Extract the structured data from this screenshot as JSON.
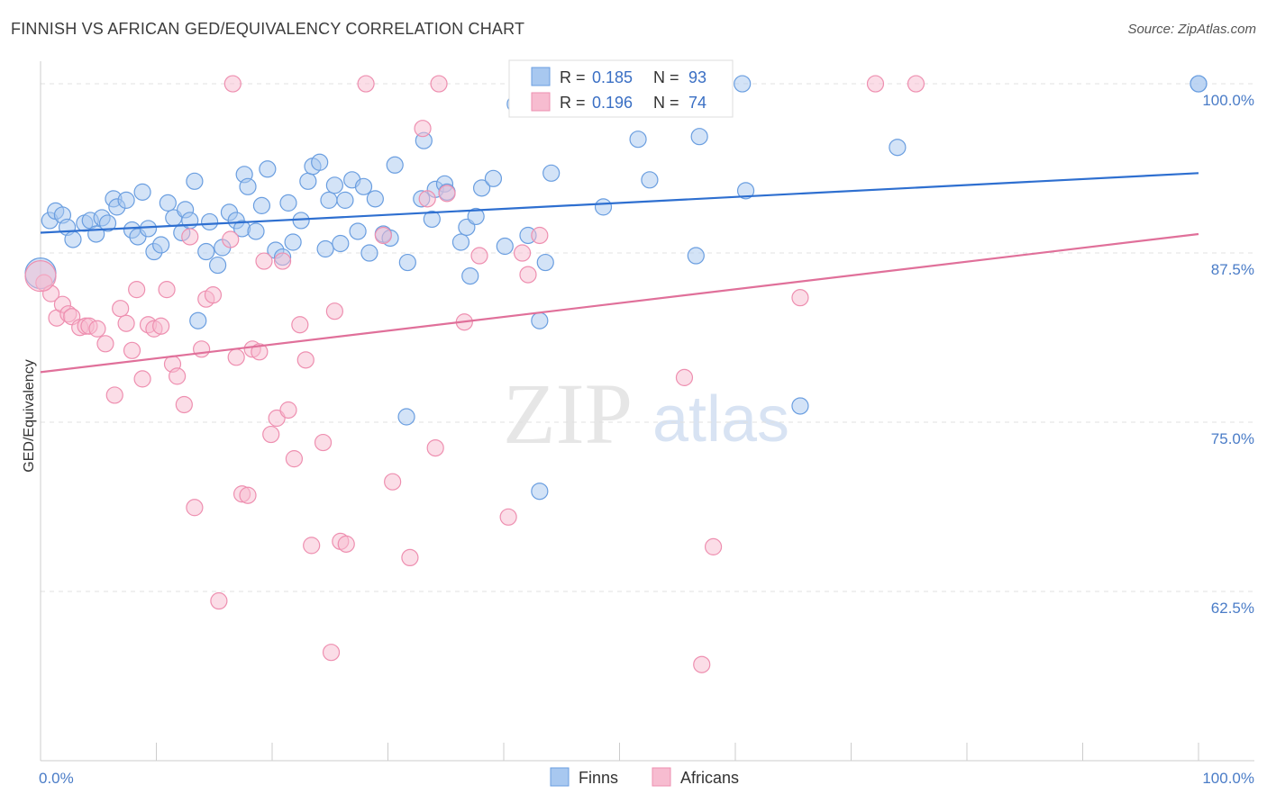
{
  "title": "FINNISH VS AFRICAN GED/EQUIVALENCY CORRELATION CHART",
  "source": "Source: ZipAtlas.com",
  "watermark": {
    "zip": "ZIP",
    "atlas": "atlas"
  },
  "colors": {
    "finns_fill": "#a8c8f0",
    "finns_stroke": "#6a9ee0",
    "finns_line": "#2e6fd0",
    "africans_fill": "#f7bcd0",
    "africans_stroke": "#ee8fb0",
    "africans_line": "#e0709a",
    "tick_label": "#4a7cc7",
    "grid": "#e0e0e0"
  },
  "legend_box": {
    "rows": [
      {
        "r_label": "R =",
        "r_value": "0.185",
        "n_label": "N =",
        "n_value": "93"
      },
      {
        "r_label": "R =",
        "r_value": "0.196",
        "n_label": "N =",
        "n_value": "74"
      }
    ]
  },
  "chart_data": {
    "type": "scatter",
    "title": "FINNISH VS AFRICAN GED/EQUIVALENCY CORRELATION CHART",
    "xlabel": "",
    "ylabel": "GED/Equivalency",
    "xlim": [
      0,
      100
    ],
    "ylim": [
      50,
      101
    ],
    "x_tick_labels": [
      "0.0%",
      "100.0%"
    ],
    "y_ticks": [
      62.5,
      75.0,
      87.5,
      100.0
    ],
    "y_tick_labels": [
      "62.5%",
      "75.0%",
      "87.5%",
      "100.0%"
    ],
    "grid": true,
    "legend_position": "bottom",
    "series": [
      {
        "name": "Finns",
        "r": 0.185,
        "n": 93,
        "trend": {
          "x": [
            0,
            100
          ],
          "y": [
            89.0,
            93.4
          ]
        },
        "points": [
          [
            0.8,
            89.9
          ],
          [
            1.3,
            90.6
          ],
          [
            1.9,
            90.3
          ],
          [
            2.3,
            89.4
          ],
          [
            2.8,
            88.5
          ],
          [
            3.8,
            89.7
          ],
          [
            4.3,
            89.9
          ],
          [
            4.8,
            88.9
          ],
          [
            5.3,
            90.1
          ],
          [
            5.8,
            89.7
          ],
          [
            6.3,
            91.5
          ],
          [
            6.6,
            90.9
          ],
          [
            7.4,
            91.4
          ],
          [
            7.9,
            89.2
          ],
          [
            8.4,
            88.7
          ],
          [
            8.8,
            92.0
          ],
          [
            9.3,
            89.3
          ],
          [
            9.8,
            87.6
          ],
          [
            10.4,
            88.1
          ],
          [
            11.0,
            91.2
          ],
          [
            11.5,
            90.1
          ],
          [
            12.2,
            89.0
          ],
          [
            12.5,
            90.7
          ],
          [
            12.9,
            89.9
          ],
          [
            13.3,
            92.8
          ],
          [
            14.3,
            87.6
          ],
          [
            14.6,
            89.8
          ],
          [
            15.3,
            86.6
          ],
          [
            15.7,
            87.9
          ],
          [
            16.3,
            90.5
          ],
          [
            16.9,
            89.9
          ],
          [
            17.4,
            89.3
          ],
          [
            17.6,
            93.3
          ],
          [
            17.9,
            92.4
          ],
          [
            18.6,
            89.1
          ],
          [
            19.1,
            91.0
          ],
          [
            19.6,
            93.7
          ],
          [
            20.3,
            87.7
          ],
          [
            20.9,
            87.2
          ],
          [
            21.4,
            91.2
          ],
          [
            21.8,
            88.3
          ],
          [
            22.5,
            89.9
          ],
          [
            23.1,
            92.8
          ],
          [
            23.5,
            93.9
          ],
          [
            24.1,
            94.2
          ],
          [
            24.6,
            87.8
          ],
          [
            24.9,
            91.4
          ],
          [
            25.4,
            92.5
          ],
          [
            25.9,
            88.2
          ],
          [
            26.3,
            91.4
          ],
          [
            26.9,
            92.9
          ],
          [
            27.4,
            89.1
          ],
          [
            27.9,
            92.4
          ],
          [
            28.4,
            87.5
          ],
          [
            28.9,
            91.5
          ],
          [
            29.6,
            88.9
          ],
          [
            30.2,
            88.6
          ],
          [
            30.6,
            94.0
          ],
          [
            31.7,
            86.8
          ],
          [
            32.9,
            91.5
          ],
          [
            33.1,
            95.8
          ],
          [
            33.8,
            90.0
          ],
          [
            34.1,
            92.2
          ],
          [
            34.9,
            92.6
          ],
          [
            35.1,
            92.0
          ],
          [
            36.3,
            88.3
          ],
          [
            36.8,
            89.4
          ],
          [
            37.1,
            85.8
          ],
          [
            37.6,
            90.2
          ],
          [
            38.1,
            92.3
          ],
          [
            39.1,
            93.0
          ],
          [
            40.1,
            88.0
          ],
          [
            41.0,
            98.5
          ],
          [
            42.1,
            88.8
          ],
          [
            43.1,
            82.5
          ],
          [
            43.6,
            86.8
          ],
          [
            44.1,
            93.4
          ],
          [
            31.6,
            75.4
          ],
          [
            43.1,
            69.9
          ],
          [
            48.6,
            90.9
          ],
          [
            51.6,
            95.9
          ],
          [
            52.6,
            92.9
          ],
          [
            55.6,
            100.0
          ],
          [
            56.6,
            87.3
          ],
          [
            56.9,
            96.1
          ],
          [
            60.6,
            100.0
          ],
          [
            60.9,
            92.1
          ],
          [
            65.6,
            76.2
          ],
          [
            74.0,
            95.3
          ],
          [
            100.0,
            100.0
          ],
          [
            100.0,
            100.0
          ],
          [
            0.0,
            86.0
          ],
          [
            13.6,
            82.5
          ]
        ]
      },
      {
        "name": "Africans",
        "r": 0.196,
        "n": 74,
        "trend": {
          "x": [
            0,
            100
          ],
          "y": [
            78.7,
            88.9
          ]
        },
        "points": [
          [
            0.3,
            85.3
          ],
          [
            0.9,
            84.5
          ],
          [
            1.4,
            82.7
          ],
          [
            1.9,
            83.7
          ],
          [
            2.4,
            83.0
          ],
          [
            2.7,
            82.8
          ],
          [
            3.4,
            82.0
          ],
          [
            3.9,
            82.1
          ],
          [
            4.2,
            82.1
          ],
          [
            4.9,
            81.9
          ],
          [
            5.6,
            80.8
          ],
          [
            6.4,
            77.0
          ],
          [
            6.9,
            83.4
          ],
          [
            7.4,
            82.3
          ],
          [
            7.9,
            80.3
          ],
          [
            8.3,
            84.8
          ],
          [
            8.8,
            78.2
          ],
          [
            9.3,
            82.2
          ],
          [
            9.8,
            81.9
          ],
          [
            10.4,
            82.1
          ],
          [
            10.9,
            84.8
          ],
          [
            11.4,
            79.3
          ],
          [
            11.8,
            78.4
          ],
          [
            12.4,
            76.3
          ],
          [
            12.9,
            88.7
          ],
          [
            13.3,
            68.7
          ],
          [
            13.9,
            80.4
          ],
          [
            14.3,
            84.1
          ],
          [
            14.9,
            84.4
          ],
          [
            15.4,
            61.8
          ],
          [
            16.4,
            88.5
          ],
          [
            16.6,
            100.0
          ],
          [
            16.9,
            79.8
          ],
          [
            17.4,
            69.7
          ],
          [
            17.9,
            69.6
          ],
          [
            18.3,
            80.4
          ],
          [
            18.9,
            80.2
          ],
          [
            19.3,
            86.9
          ],
          [
            19.9,
            74.1
          ],
          [
            20.4,
            75.3
          ],
          [
            20.9,
            86.9
          ],
          [
            21.4,
            75.9
          ],
          [
            21.9,
            72.3
          ],
          [
            22.4,
            82.2
          ],
          [
            22.9,
            79.6
          ],
          [
            23.4,
            65.9
          ],
          [
            24.4,
            73.5
          ],
          [
            25.1,
            58.0
          ],
          [
            25.4,
            83.2
          ],
          [
            25.9,
            66.2
          ],
          [
            26.4,
            66.0
          ],
          [
            28.1,
            100.0
          ],
          [
            29.6,
            88.8
          ],
          [
            30.4,
            70.6
          ],
          [
            31.9,
            65.0
          ],
          [
            33.0,
            96.7
          ],
          [
            33.4,
            91.5
          ],
          [
            34.1,
            73.1
          ],
          [
            34.4,
            100.0
          ],
          [
            35.1,
            91.9
          ],
          [
            36.6,
            82.4
          ],
          [
            37.9,
            87.3
          ],
          [
            40.4,
            68.0
          ],
          [
            41.6,
            87.5
          ],
          [
            42.1,
            85.9
          ],
          [
            43.1,
            88.8
          ],
          [
            52.1,
            100.0
          ],
          [
            55.6,
            78.3
          ],
          [
            57.1,
            57.1
          ],
          [
            58.1,
            65.8
          ],
          [
            65.6,
            84.2
          ],
          [
            72.1,
            100.0
          ],
          [
            75.6,
            100.0
          ],
          [
            0.0,
            85.8
          ]
        ]
      }
    ]
  }
}
